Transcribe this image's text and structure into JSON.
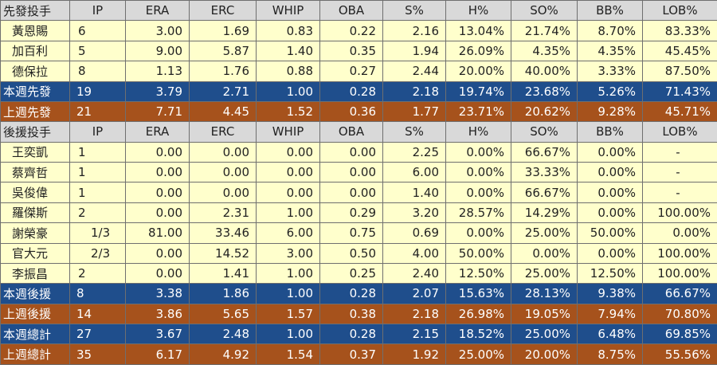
{
  "columns": [
    "IP",
    "ERA",
    "ERC",
    "WHIP",
    "OBA",
    "S%",
    "H%",
    "SO%",
    "BB%",
    "LOB%"
  ],
  "sections": [
    {
      "header_label": "先發投手",
      "rows": [
        {
          "name": "黃恩賜",
          "ip": "6",
          "v": [
            "3.00",
            "1.69",
            "0.83",
            "0.22",
            "2.16",
            "13.04%",
            "21.74%",
            "8.70%",
            "83.33%"
          ]
        },
        {
          "name": "加百利",
          "ip": "5",
          "v": [
            "9.00",
            "5.87",
            "1.40",
            "0.35",
            "1.94",
            "26.09%",
            "4.35%",
            "4.35%",
            "45.45%"
          ]
        },
        {
          "name": "德保拉",
          "ip": "8",
          "v": [
            "1.13",
            "1.76",
            "0.88",
            "0.27",
            "2.44",
            "20.00%",
            "40.00%",
            "3.33%",
            "87.50%"
          ]
        }
      ],
      "summaries": [
        {
          "style": "blue",
          "name": "本週先發",
          "ip": "19",
          "v": [
            "3.79",
            "2.71",
            "1.00",
            "0.28",
            "2.18",
            "19.74%",
            "23.68%",
            "5.26%",
            "71.43%"
          ]
        },
        {
          "style": "orange",
          "name": "上週先發",
          "ip": "21",
          "v": [
            "7.71",
            "4.45",
            "1.52",
            "0.36",
            "1.77",
            "23.71%",
            "20.62%",
            "9.28%",
            "45.71%"
          ]
        }
      ]
    },
    {
      "header_label": "後援投手",
      "rows": [
        {
          "name": "王奕凱",
          "ip": "1",
          "v": [
            "0.00",
            "0.00",
            "0.00",
            "0.00",
            "2.25",
            "0.00%",
            "66.67%",
            "0.00%",
            "-"
          ]
        },
        {
          "name": "蔡齊哲",
          "ip": "1",
          "v": [
            "0.00",
            "0.00",
            "0.00",
            "0.00",
            "6.00",
            "0.00%",
            "33.33%",
            "0.00%",
            "-"
          ]
        },
        {
          "name": "吳俊偉",
          "ip": "1",
          "v": [
            "0.00",
            "0.00",
            "0.00",
            "0.00",
            "1.40",
            "0.00%",
            "66.67%",
            "0.00%",
            "-"
          ]
        },
        {
          "name": "羅傑斯",
          "ip": "2",
          "v": [
            "0.00",
            "2.31",
            "1.00",
            "0.29",
            "3.20",
            "28.57%",
            "14.29%",
            "0.00%",
            "100.00%"
          ]
        },
        {
          "name": "謝榮豪",
          "ip": "1/3",
          "v": [
            "81.00",
            "33.46",
            "6.00",
            "0.75",
            "0.69",
            "0.00%",
            "25.00%",
            "50.00%",
            "0.00%"
          ]
        },
        {
          "name": "官大元",
          "ip": "2/3",
          "v": [
            "0.00",
            "14.52",
            "3.00",
            "0.50",
            "4.00",
            "50.00%",
            "0.00%",
            "0.00%",
            "100.00%"
          ]
        },
        {
          "name": "李振昌",
          "ip": "2",
          "v": [
            "0.00",
            "1.41",
            "1.00",
            "0.25",
            "2.40",
            "12.50%",
            "25.00%",
            "12.50%",
            "100.00%"
          ]
        }
      ],
      "summaries": [
        {
          "style": "blue",
          "name": "本週後援",
          "ip": "8",
          "v": [
            "3.38",
            "1.86",
            "1.00",
            "0.28",
            "2.07",
            "15.63%",
            "28.13%",
            "9.38%",
            "66.67%"
          ]
        },
        {
          "style": "orange",
          "name": "上週後援",
          "ip": "14",
          "v": [
            "3.86",
            "5.65",
            "1.57",
            "0.38",
            "2.18",
            "26.98%",
            "19.05%",
            "7.94%",
            "70.80%"
          ]
        }
      ]
    }
  ],
  "totals": [
    {
      "style": "blue",
      "name": "本週總計",
      "ip": "27",
      "v": [
        "3.67",
        "2.48",
        "1.00",
        "0.28",
        "2.15",
        "18.52%",
        "25.00%",
        "6.48%",
        "69.85%"
      ]
    },
    {
      "style": "orange",
      "name": "上週總計",
      "ip": "35",
      "v": [
        "6.17",
        "4.92",
        "1.54",
        "0.37",
        "1.92",
        "25.00%",
        "20.00%",
        "8.75%",
        "55.56%"
      ]
    }
  ]
}
